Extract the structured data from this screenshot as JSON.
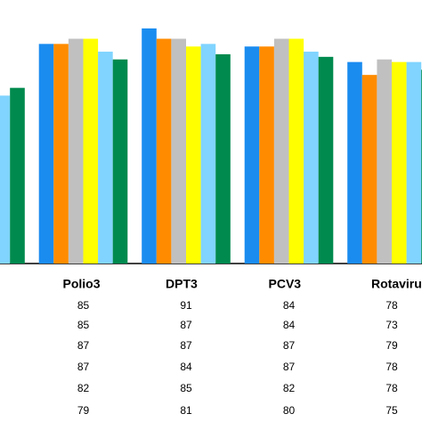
{
  "chart_data": {
    "type": "bar",
    "categories": [
      null,
      "Polio3",
      "DPT3",
      "PCV3",
      "Rotavirus"
    ],
    "series": [
      {
        "color": "#1a8cf0",
        "values": [
          null,
          85,
          91,
          84,
          78
        ]
      },
      {
        "color": "#ff8c00",
        "values": [
          null,
          85,
          87,
          84,
          73
        ]
      },
      {
        "color": "#c0c0c0",
        "values": [
          null,
          87,
          87,
          87,
          79
        ]
      },
      {
        "color": "#ffff00",
        "values": [
          null,
          87,
          84,
          87,
          78
        ]
      },
      {
        "color": "#80d4ff",
        "values": [
          65,
          82,
          85,
          82,
          78
        ]
      },
      {
        "color": "#008a4e",
        "values": [
          68,
          79,
          81,
          80,
          75
        ]
      }
    ],
    "ylim": [
      0,
      102
    ]
  }
}
